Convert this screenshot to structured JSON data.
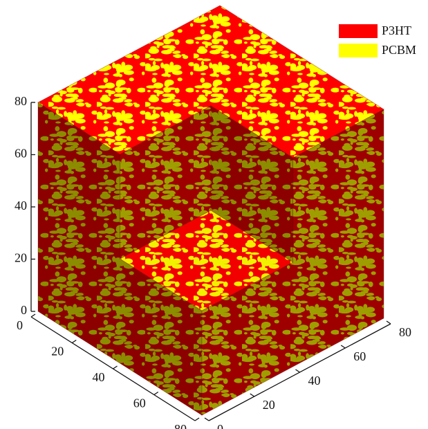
{
  "chart_data": {
    "type": "voxel-cube",
    "series": [
      {
        "name": "P3HT",
        "color": "#ff0000"
      },
      {
        "name": "PCBM",
        "color": "#ffff00"
      }
    ],
    "xlim": [
      0,
      80
    ],
    "xticks": [
      0,
      20,
      40,
      60,
      80
    ],
    "ylim": [
      0,
      80
    ],
    "yticks": [
      0,
      20,
      40,
      60,
      80
    ],
    "zlim": [
      0,
      80
    ],
    "zticks": [
      0,
      20,
      40,
      60,
      80
    ],
    "legend": "upper right"
  }
}
